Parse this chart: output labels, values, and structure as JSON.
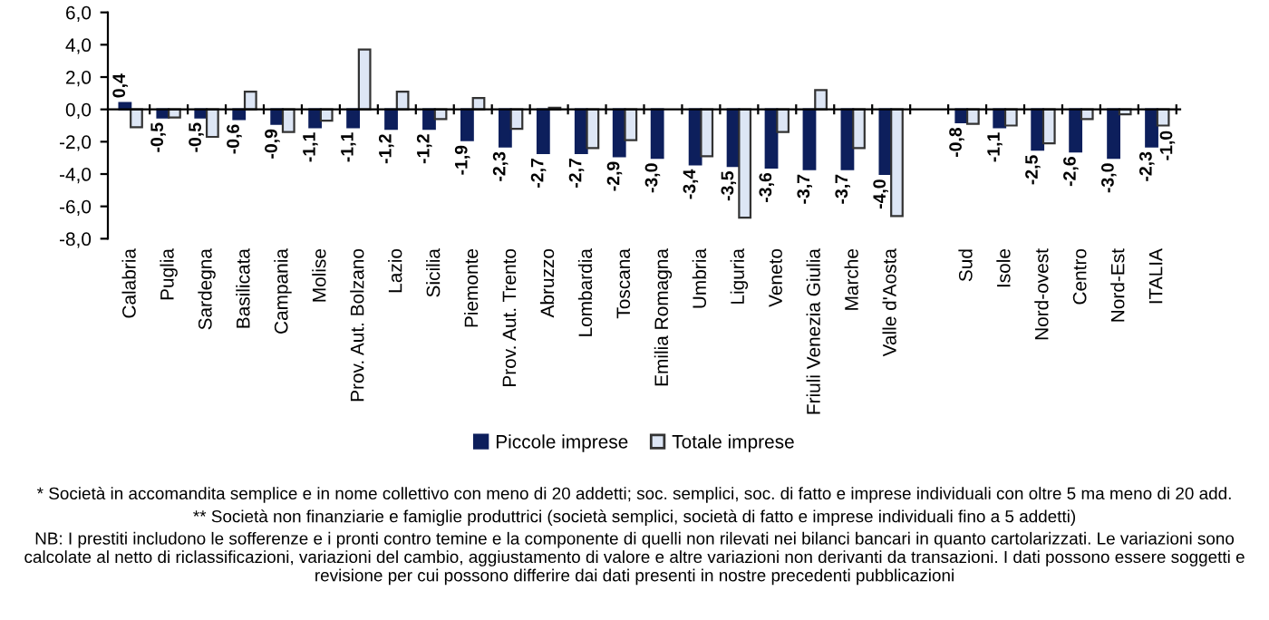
{
  "chart_data": {
    "type": "bar",
    "categories": [
      "Calabria",
      "Puglia",
      "Sardegna",
      "Basilicata",
      "Campania",
      "Molise",
      "Prov. Aut. Bolzano",
      "Lazio",
      "Sicilia",
      "Piemonte",
      "Prov. Aut. Trento",
      "Abruzzo",
      "Lombardia",
      "Toscana",
      "Emilia Romagna",
      "Umbria",
      "Liguria",
      "Veneto",
      "Friuli Venezia Giulia",
      "Marche",
      "Valle d'Aosta",
      null,
      "Sud",
      "Isole",
      "Nord-ovest",
      "Centro",
      "Nord-Est",
      "ITALIA"
    ],
    "series": [
      {
        "name": "Piccole imprese",
        "color": "#0d1f5c",
        "values": [
          0.4,
          -0.5,
          -0.5,
          -0.6,
          -0.9,
          -1.1,
          -1.1,
          -1.2,
          -1.2,
          -1.9,
          -2.3,
          -2.7,
          -2.7,
          -2.9,
          -3.0,
          -3.4,
          -3.5,
          -3.6,
          -3.7,
          -3.7,
          -4.0,
          null,
          -0.8,
          -1.1,
          -2.5,
          -2.6,
          -3.0,
          -2.3
        ],
        "value_labels": [
          "0,4",
          "-0,5",
          "-0,5",
          "-0,6",
          "-0,9",
          "-1,1",
          "-1,1",
          "-1,2",
          "-1,2",
          "-1,9",
          "-2,3",
          "-2,7",
          "-2,7",
          "-2,9",
          "-3,0",
          "-3,4",
          "-3,5",
          "-3,6",
          "-3,7",
          "-3,7",
          "-4,0",
          null,
          "-0,8",
          "-1,1",
          "-2,5",
          "-2,6",
          "-3,0",
          "-2,3"
        ]
      },
      {
        "name": "Totale imprese",
        "color": "#dde6f5",
        "values": [
          -1.1,
          -0.5,
          -1.7,
          1.1,
          -1.4,
          -0.7,
          3.7,
          1.1,
          -0.6,
          0.7,
          -1.2,
          0.1,
          -2.4,
          -1.9,
          null,
          -2.9,
          -6.7,
          -1.4,
          1.2,
          -2.4,
          -6.6,
          null,
          -0.9,
          -1.0,
          -2.1,
          -0.6,
          -0.3,
          -1.0
        ],
        "value_labels": [
          null,
          null,
          null,
          null,
          null,
          null,
          null,
          null,
          null,
          null,
          null,
          null,
          null,
          null,
          null,
          null,
          null,
          null,
          null,
          null,
          null,
          null,
          null,
          null,
          null,
          null,
          null,
          "-1,0"
        ]
      }
    ],
    "ylim": [
      -8,
      6
    ],
    "yticks": [
      {
        "value": 6,
        "label": "6,0"
      },
      {
        "value": 4,
        "label": "4,0"
      },
      {
        "value": 2,
        "label": "2,0"
      },
      {
        "value": 0,
        "label": "0,0"
      },
      {
        "value": -2,
        "label": "-2,0"
      },
      {
        "value": -4,
        "label": "-4,0"
      },
      {
        "value": -6,
        "label": "-6,0"
      },
      {
        "value": -8,
        "label": "-8,0"
      }
    ],
    "legend": "bottom",
    "annotations": [
      "* Società in accomandita semplice e in nome collettivo con meno di 20 addetti; soc. semplici, soc. di fatto e imprese individuali con oltre 5 ma meno di 20 add.",
      "** Società non finanziarie e famiglie produttrici (società semplici, società di fatto e imprese individuali fino a 5 addetti)",
      "NB: I prestiti includono le sofferenze e i pronti contro temine e la componente di quelli non rilevati nei bilanci bancari in quanto cartolarizzati. Le variazioni sono calcolate al netto di riclassificazioni, variazioni del cambio, aggiustamento di valore e altre variazioni non derivanti da transazioni. I dati possono essere soggetti e revisione per cui possono differire dai dati presenti in nostre precedenti pubblicazioni"
    ]
  }
}
